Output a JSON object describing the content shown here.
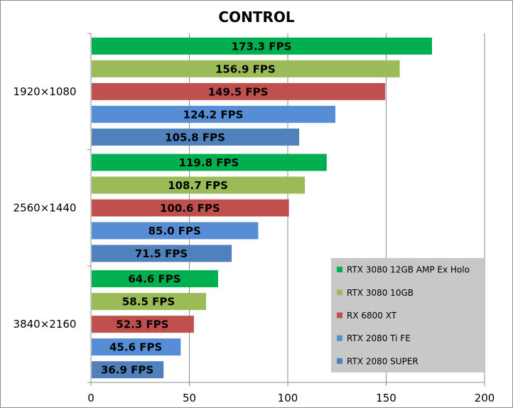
{
  "chart_data": {
    "type": "bar",
    "orientation": "horizontal",
    "title": "CONTROL",
    "categories": [
      "1920×1080",
      "2560×1440",
      "3840×2160"
    ],
    "series": [
      {
        "name": "RTX 3080 12GB AMP Ex Holo",
        "color": "#00b050",
        "values": [
          173.3,
          119.8,
          64.6
        ],
        "labels": [
          "173.3 FPS",
          "119.8 FPS",
          "64.6 FPS"
        ]
      },
      {
        "name": "RTX 3080 10GB",
        "color": "#9bbb59",
        "values": [
          156.9,
          108.7,
          58.5
        ],
        "labels": [
          "156.9 FPS",
          "108.7 FPS",
          "58.5 FPS"
        ]
      },
      {
        "name": "RX 6800 XT",
        "color": "#c0504d",
        "values": [
          149.5,
          100.6,
          52.3
        ],
        "labels": [
          "149.5 FPS",
          "100.6 FPS",
          "52.3 FPS"
        ]
      },
      {
        "name": "RTX 2080 Ti FE",
        "color": "#558ed5",
        "values": [
          124.2,
          85.0,
          45.6
        ],
        "labels": [
          "124.2 FPS",
          "85.0 FPS",
          "45.6 FPS"
        ]
      },
      {
        "name": "RTX 2080 SUPER",
        "color": "#4f81bd",
        "values": [
          105.8,
          71.5,
          36.9
        ],
        "labels": [
          "105.8 FPS",
          "71.5 FPS",
          "36.9 FPS"
        ]
      }
    ],
    "xlim": [
      0,
      200
    ],
    "xticks": [
      0,
      50,
      100,
      150,
      200
    ],
    "xtick_labels": [
      "0",
      "50",
      "100",
      "150",
      "200"
    ],
    "grid": "vertical",
    "legend_position": "bottom-right",
    "xlabel": "",
    "ylabel": ""
  }
}
